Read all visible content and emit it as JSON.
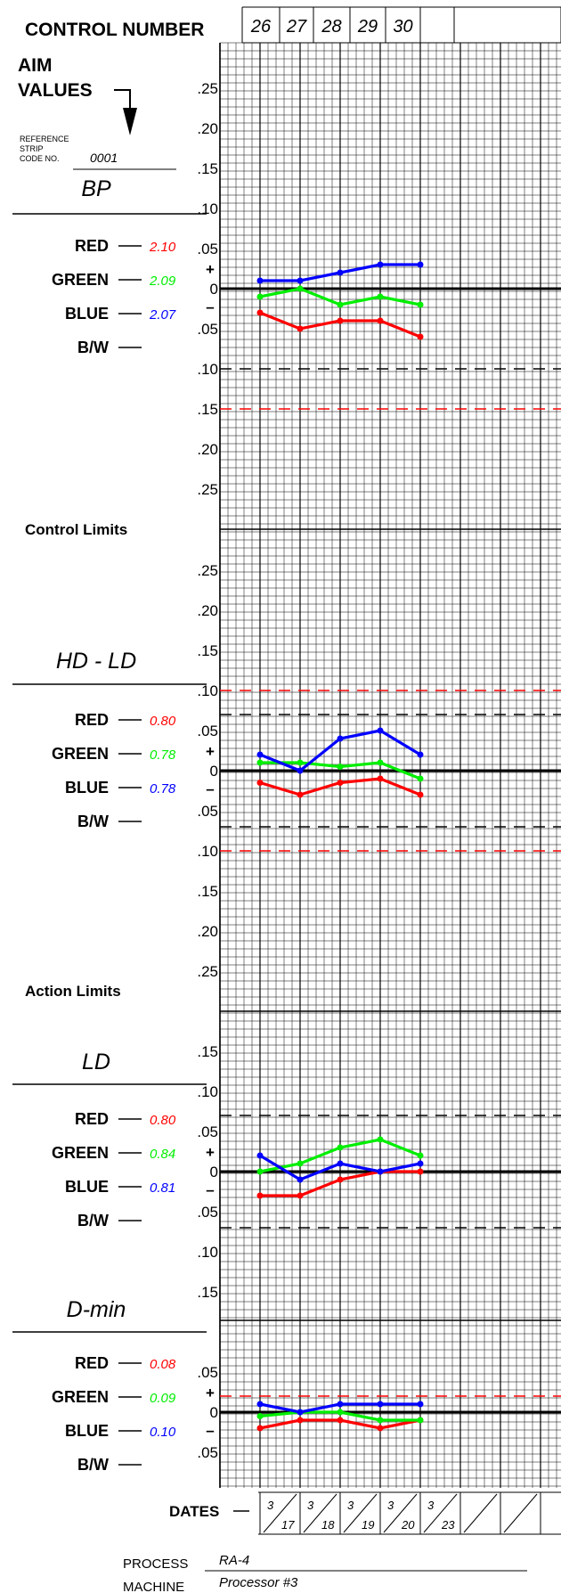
{
  "header": {
    "title": "CONTROL NUMBER",
    "control_numbers": [
      "26",
      "27",
      "28",
      "29",
      "30",
      "",
      ""
    ]
  },
  "aim": {
    "title_line1": "AIM",
    "title_line2": "VALUES",
    "ref_label_1": "REFERENCE",
    "ref_label_2": "STRIP",
    "ref_label_3": "CODE NO.",
    "ref_code": "0001"
  },
  "control_limits_label": "Control Limits",
  "action_limits_label": "Action Limits",
  "dates_label": "DATES",
  "dates": [
    {
      "month": "3",
      "day": "17"
    },
    {
      "month": "3",
      "day": "18"
    },
    {
      "month": "3",
      "day": "19"
    },
    {
      "month": "3",
      "day": "20"
    },
    {
      "month": "3",
      "day": "23"
    },
    {
      "month": "",
      "day": ""
    },
    {
      "month": "",
      "day": ""
    }
  ],
  "footer": {
    "process_label": "PROCESS",
    "process_value": "RA-4",
    "machine_label": "MACHINE",
    "machine_value": "Processor #3"
  },
  "colors": {
    "red": "#ff0000",
    "green": "#00ee00",
    "blue": "#0000ff",
    "bw": "#000000"
  },
  "chart_data": [
    {
      "type": "line",
      "title": "BP",
      "x": [
        "26",
        "27",
        "28",
        "29",
        "30"
      ],
      "y_ticks_upper": [
        ".25",
        ".20",
        ".15",
        ".10",
        ".05"
      ],
      "y_ticks_lower": [
        ".05",
        ".10",
        ".15",
        ".20",
        ".25"
      ],
      "ylim": [
        -0.25,
        0.25
      ],
      "channel_labels": [
        "RED",
        "GREEN",
        "BLUE",
        "B/W"
      ],
      "aim_values": {
        "RED": "2.10",
        "GREEN": "2.09",
        "BLUE": "2.07",
        "B/W": ""
      },
      "series": [
        {
          "name": "RED",
          "values": [
            -0.03,
            -0.05,
            -0.04,
            -0.04,
            -0.06
          ]
        },
        {
          "name": "GREEN",
          "values": [
            -0.01,
            0.0,
            -0.02,
            -0.01,
            -0.02
          ]
        },
        {
          "name": "BLUE",
          "values": [
            0.01,
            0.01,
            0.02,
            0.03,
            0.03
          ]
        }
      ],
      "limits": [
        {
          "value": -0.1,
          "kind": "control"
        },
        {
          "value": -0.15,
          "kind": "action"
        }
      ]
    },
    {
      "type": "line",
      "title": "HD - LD",
      "x": [
        "26",
        "27",
        "28",
        "29",
        "30"
      ],
      "y_ticks_upper": [
        ".25",
        ".20",
        ".15",
        ".10",
        ".05"
      ],
      "y_ticks_lower": [
        ".05",
        ".10",
        ".15",
        ".20",
        ".25"
      ],
      "ylim": [
        -0.25,
        0.25
      ],
      "channel_labels": [
        "RED",
        "GREEN",
        "BLUE",
        "B/W"
      ],
      "aim_values": {
        "RED": "0.80",
        "GREEN": "0.78",
        "BLUE": "0.78",
        "B/W": ""
      },
      "series": [
        {
          "name": "RED",
          "values": [
            -0.015,
            -0.03,
            -0.015,
            -0.01,
            -0.03
          ]
        },
        {
          "name": "GREEN",
          "values": [
            0.01,
            0.01,
            0.005,
            0.01,
            -0.01
          ]
        },
        {
          "name": "BLUE",
          "values": [
            0.02,
            0.0,
            0.04,
            0.05,
            0.02
          ]
        }
      ],
      "limits": [
        {
          "value": 0.1,
          "kind": "action"
        },
        {
          "value": 0.07,
          "kind": "control"
        },
        {
          "value": -0.07,
          "kind": "control"
        },
        {
          "value": -0.1,
          "kind": "action"
        }
      ]
    },
    {
      "type": "line",
      "title": "LD",
      "x": [
        "26",
        "27",
        "28",
        "29",
        "30"
      ],
      "y_ticks_upper": [
        ".15",
        ".10",
        ".05"
      ],
      "y_ticks_lower": [
        ".05",
        ".10",
        ".15"
      ],
      "ylim": [
        -0.15,
        0.15
      ],
      "channel_labels": [
        "RED",
        "GREEN",
        "BLUE",
        "B/W"
      ],
      "aim_values": {
        "RED": "0.80",
        "GREEN": "0.84",
        "BLUE": "0.81",
        "B/W": ""
      },
      "series": [
        {
          "name": "RED",
          "values": [
            -0.03,
            -0.03,
            -0.01,
            0.0,
            0.0
          ]
        },
        {
          "name": "GREEN",
          "values": [
            0.0,
            0.01,
            0.03,
            0.04,
            0.02
          ]
        },
        {
          "name": "BLUE",
          "values": [
            0.02,
            -0.01,
            0.01,
            0.0,
            0.01
          ]
        }
      ],
      "limits": [
        {
          "value": 0.07,
          "kind": "control"
        },
        {
          "value": -0.07,
          "kind": "control"
        }
      ]
    },
    {
      "type": "line",
      "title": "D-min",
      "x": [
        "26",
        "27",
        "28",
        "29",
        "30"
      ],
      "y_ticks_upper": [
        ".05"
      ],
      "y_ticks_lower": [
        ".05"
      ],
      "ylim": [
        -0.05,
        0.05
      ],
      "channel_labels": [
        "RED",
        "GREEN",
        "BLUE",
        "B/W"
      ],
      "aim_values": {
        "RED": "0.08",
        "GREEN": "0.09",
        "BLUE": "0.10",
        "B/W": ""
      },
      "series": [
        {
          "name": "RED",
          "values": [
            -0.02,
            -0.01,
            -0.01,
            -0.02,
            -0.01
          ]
        },
        {
          "name": "GREEN",
          "values": [
            -0.005,
            0.0,
            0.0,
            -0.01,
            -0.01
          ]
        },
        {
          "name": "BLUE",
          "values": [
            0.01,
            0.0,
            0.01,
            0.01,
            0.01
          ]
        }
      ],
      "limits": [
        {
          "value": 0.02,
          "kind": "action"
        }
      ]
    }
  ]
}
